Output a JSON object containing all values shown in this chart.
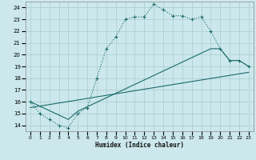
{
  "xlabel": "Humidex (Indice chaleur)",
  "bg_color": "#cce8ec",
  "grid_color": "#aaccd0",
  "line_color": "#1a6b6b",
  "xlim": [
    -0.5,
    23.5
  ],
  "ylim": [
    13.5,
    24.5
  ],
  "xticks": [
    0,
    1,
    2,
    3,
    4,
    5,
    6,
    7,
    8,
    9,
    10,
    11,
    12,
    13,
    14,
    15,
    16,
    17,
    18,
    19,
    20,
    21,
    22,
    23
  ],
  "yticks": [
    14,
    15,
    16,
    17,
    18,
    19,
    20,
    21,
    22,
    23,
    24
  ],
  "curve1_x": [
    0,
    1,
    2,
    3,
    4,
    5,
    6,
    7,
    8,
    9,
    10,
    11,
    12,
    13,
    14,
    15,
    16,
    17,
    18,
    19,
    20,
    21,
    22,
    23
  ],
  "curve1_y": [
    16.0,
    15.0,
    14.5,
    14.0,
    13.8,
    15.0,
    15.5,
    18.0,
    20.5,
    21.5,
    23.0,
    23.2,
    23.2,
    24.3,
    23.8,
    23.3,
    23.3,
    23.0,
    23.2,
    22.0,
    20.5,
    19.5,
    19.5,
    19.0
  ],
  "curve2_x": [
    0,
    4,
    5,
    19,
    20,
    21,
    22,
    23
  ],
  "curve2_y": [
    16.0,
    14.5,
    15.2,
    20.5,
    20.5,
    19.5,
    19.5,
    19.0
  ],
  "curve3_x": [
    0,
    23
  ],
  "curve3_y": [
    15.5,
    18.5
  ]
}
